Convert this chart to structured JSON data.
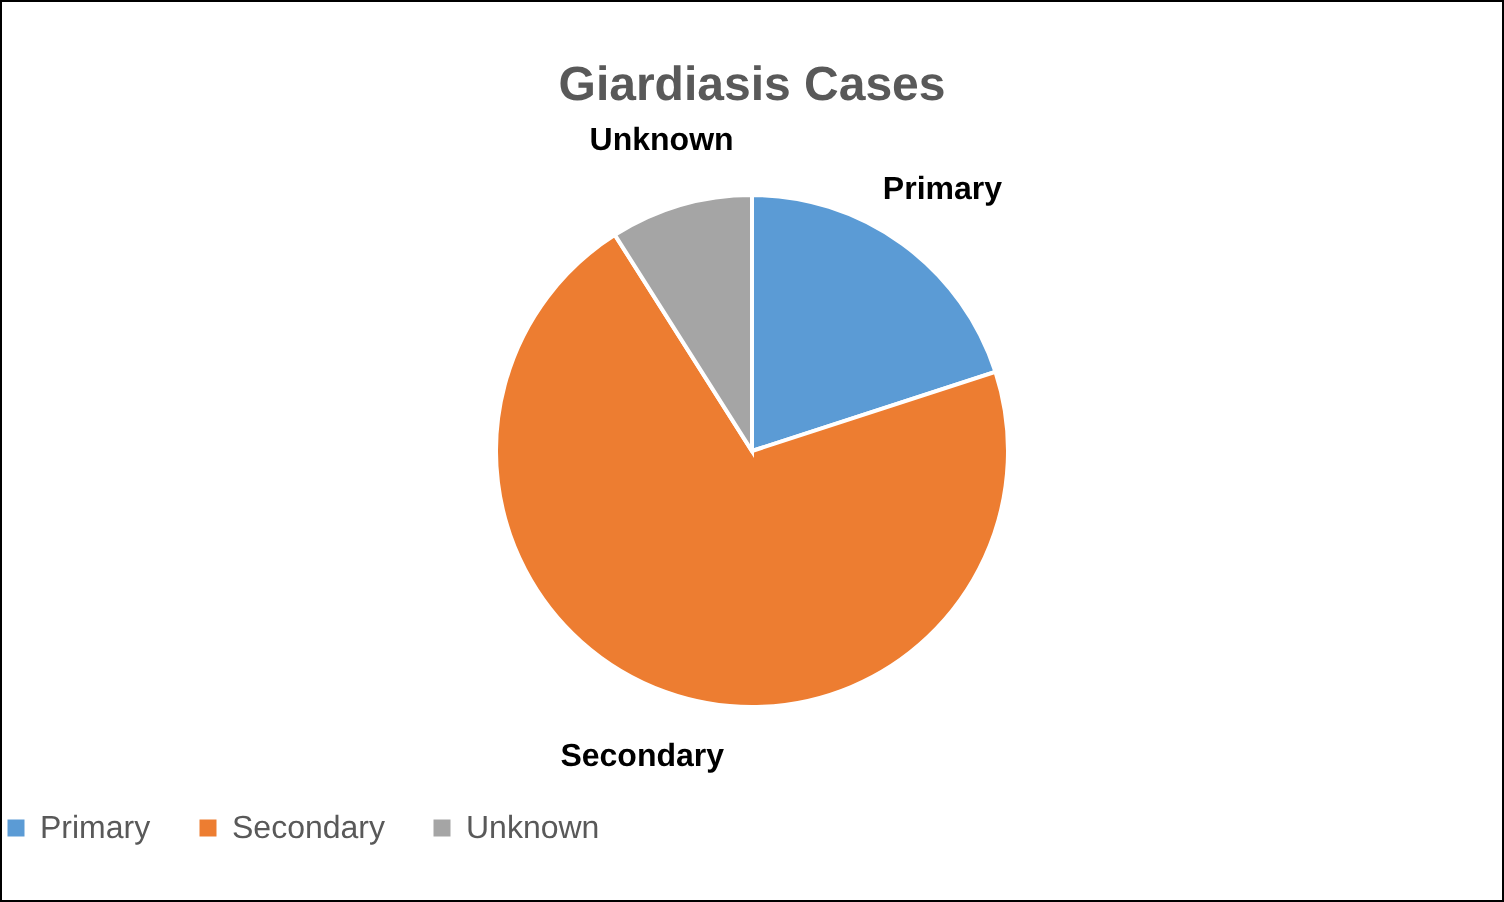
{
  "chart_data": {
    "type": "pie",
    "title": "Giardiasis Cases",
    "categories": [
      "Primary",
      "Secondary",
      "Unknown"
    ],
    "values": [
      20,
      71,
      9
    ],
    "colors": [
      "#5b9bd5",
      "#ed7d31",
      "#a5a5a5"
    ],
    "legend": "bottom"
  }
}
